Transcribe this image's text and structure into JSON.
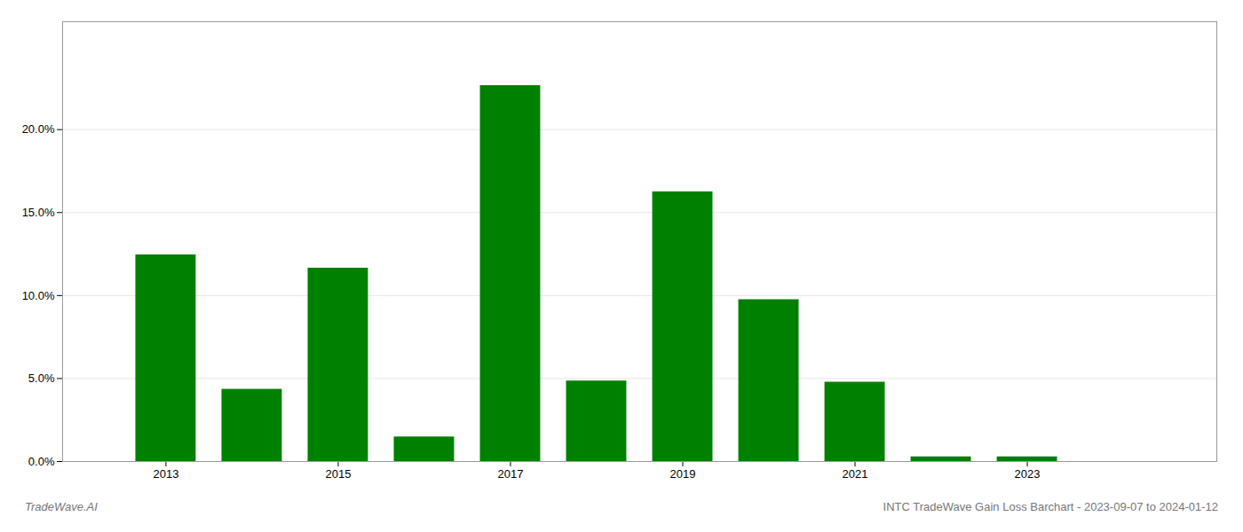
{
  "chart_data": {
    "type": "bar",
    "x": [
      2013,
      2014,
      2015,
      2016,
      2017,
      2018,
      2019,
      2020,
      2021,
      2022,
      2023,
      2024
    ],
    "values": [
      0.1245,
      0.0435,
      0.1165,
      0.0148,
      0.2265,
      0.0485,
      0.1625,
      0.0975,
      0.0478,
      0.0028,
      0.0028,
      0.0
    ],
    "color": "#008000",
    "xlim": [
      2011.8,
      2025.2
    ],
    "xticks": [
      2013,
      2015,
      2017,
      2019,
      2021,
      2023
    ],
    "ylim": [
      0,
      0.265
    ],
    "yticks": [
      {
        "value": 0.0,
        "label": "0.0%"
      },
      {
        "value": 0.05,
        "label": "5.0%"
      },
      {
        "value": 0.1,
        "label": "10.0%"
      },
      {
        "value": 0.15,
        "label": "15.0%"
      },
      {
        "value": 0.2,
        "label": "20.0%"
      }
    ],
    "grid": true,
    "annotations": [
      "TradeWave.AI",
      "INTC TradeWave Gain Loss Barchart - 2023-09-07 to 2024-01-12"
    ]
  }
}
